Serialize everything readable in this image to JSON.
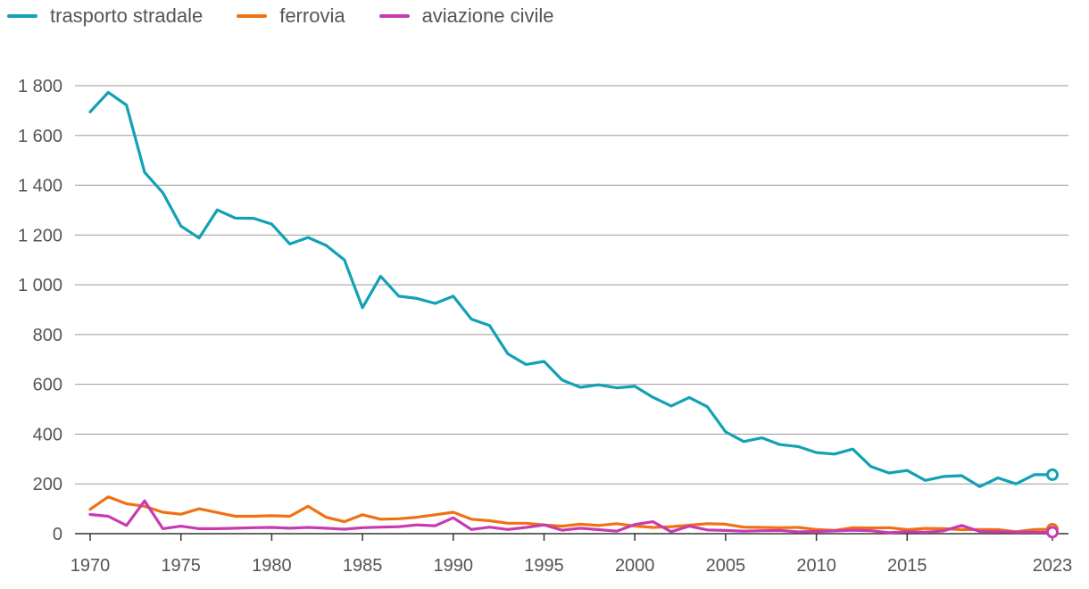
{
  "legend": [
    {
      "label": "trasporto stradale",
      "color": "#12a1b5"
    },
    {
      "label": "ferrovia",
      "color": "#f07113"
    },
    {
      "label": "aviazione civile",
      "color": "#c83bb0"
    }
  ],
  "chart_data": {
    "type": "line",
    "x": [
      1970,
      1971,
      1972,
      1973,
      1974,
      1975,
      1976,
      1977,
      1978,
      1979,
      1980,
      1981,
      1982,
      1983,
      1984,
      1985,
      1986,
      1987,
      1988,
      1989,
      1990,
      1991,
      1992,
      1993,
      1994,
      1995,
      1996,
      1997,
      1998,
      1999,
      2000,
      2001,
      2002,
      2003,
      2004,
      2005,
      2006,
      2007,
      2008,
      2009,
      2010,
      2011,
      2012,
      2013,
      2014,
      2015,
      2016,
      2017,
      2018,
      2019,
      2020,
      2021,
      2022,
      2023
    ],
    "x_ticks": [
      1970,
      1975,
      1980,
      1985,
      1990,
      1995,
      2000,
      2005,
      2010,
      2015,
      2023
    ],
    "y_ticks": [
      0,
      200,
      400,
      600,
      800,
      1000,
      1200,
      1400,
      1600,
      1800
    ],
    "y_tick_labels": [
      "0",
      "200",
      "400",
      "600",
      "800",
      "1 000",
      "1 200",
      "1 400",
      "1 600",
      "1 800"
    ],
    "ylim": [
      0,
      1800
    ],
    "grid": true,
    "legend_position": "top-left",
    "series": [
      {
        "name": "trasporto stradale",
        "color": "#12a1b5",
        "values": [
          1695,
          1773,
          1722,
          1452,
          1370,
          1236,
          1188,
          1301,
          1268,
          1267,
          1244,
          1164,
          1190,
          1158,
          1100,
          908,
          1034,
          954,
          945,
          925,
          954,
          862,
          836,
          723,
          680,
          692,
          617,
          588,
          598,
          586,
          592,
          548,
          513,
          547,
          510,
          409,
          370,
          385,
          358,
          350,
          326,
          320,
          340,
          270,
          244,
          254,
          214,
          230,
          233,
          189,
          224,
          200,
          237,
          237
        ]
      },
      {
        "name": "ferrovia",
        "color": "#f07113",
        "values": [
          98,
          148,
          120,
          110,
          86,
          78,
          100,
          85,
          70,
          70,
          72,
          70,
          110,
          66,
          48,
          76,
          58,
          60,
          66,
          76,
          86,
          58,
          52,
          42,
          42,
          35,
          30,
          38,
          33,
          40,
          31,
          25,
          28,
          34,
          40,
          38,
          26,
          25,
          24,
          25,
          17,
          13,
          24,
          23,
          24,
          16,
          21,
          20,
          16,
          17,
          16,
          8,
          17,
          18
        ]
      },
      {
        "name": "aviazione civile",
        "color": "#c83bb0",
        "values": [
          77,
          70,
          33,
          132,
          20,
          30,
          20,
          20,
          22,
          24,
          25,
          22,
          25,
          22,
          18,
          24,
          26,
          28,
          35,
          32,
          64,
          17,
          26,
          17,
          25,
          35,
          14,
          22,
          16,
          10,
          37,
          48,
          8,
          30,
          15,
          13,
          10,
          12,
          13,
          7,
          9,
          11,
          14,
          12,
          4,
          8,
          6,
          11,
          33,
          9,
          8,
          6,
          6,
          6
        ]
      }
    ],
    "endpoint_markers": true
  }
}
